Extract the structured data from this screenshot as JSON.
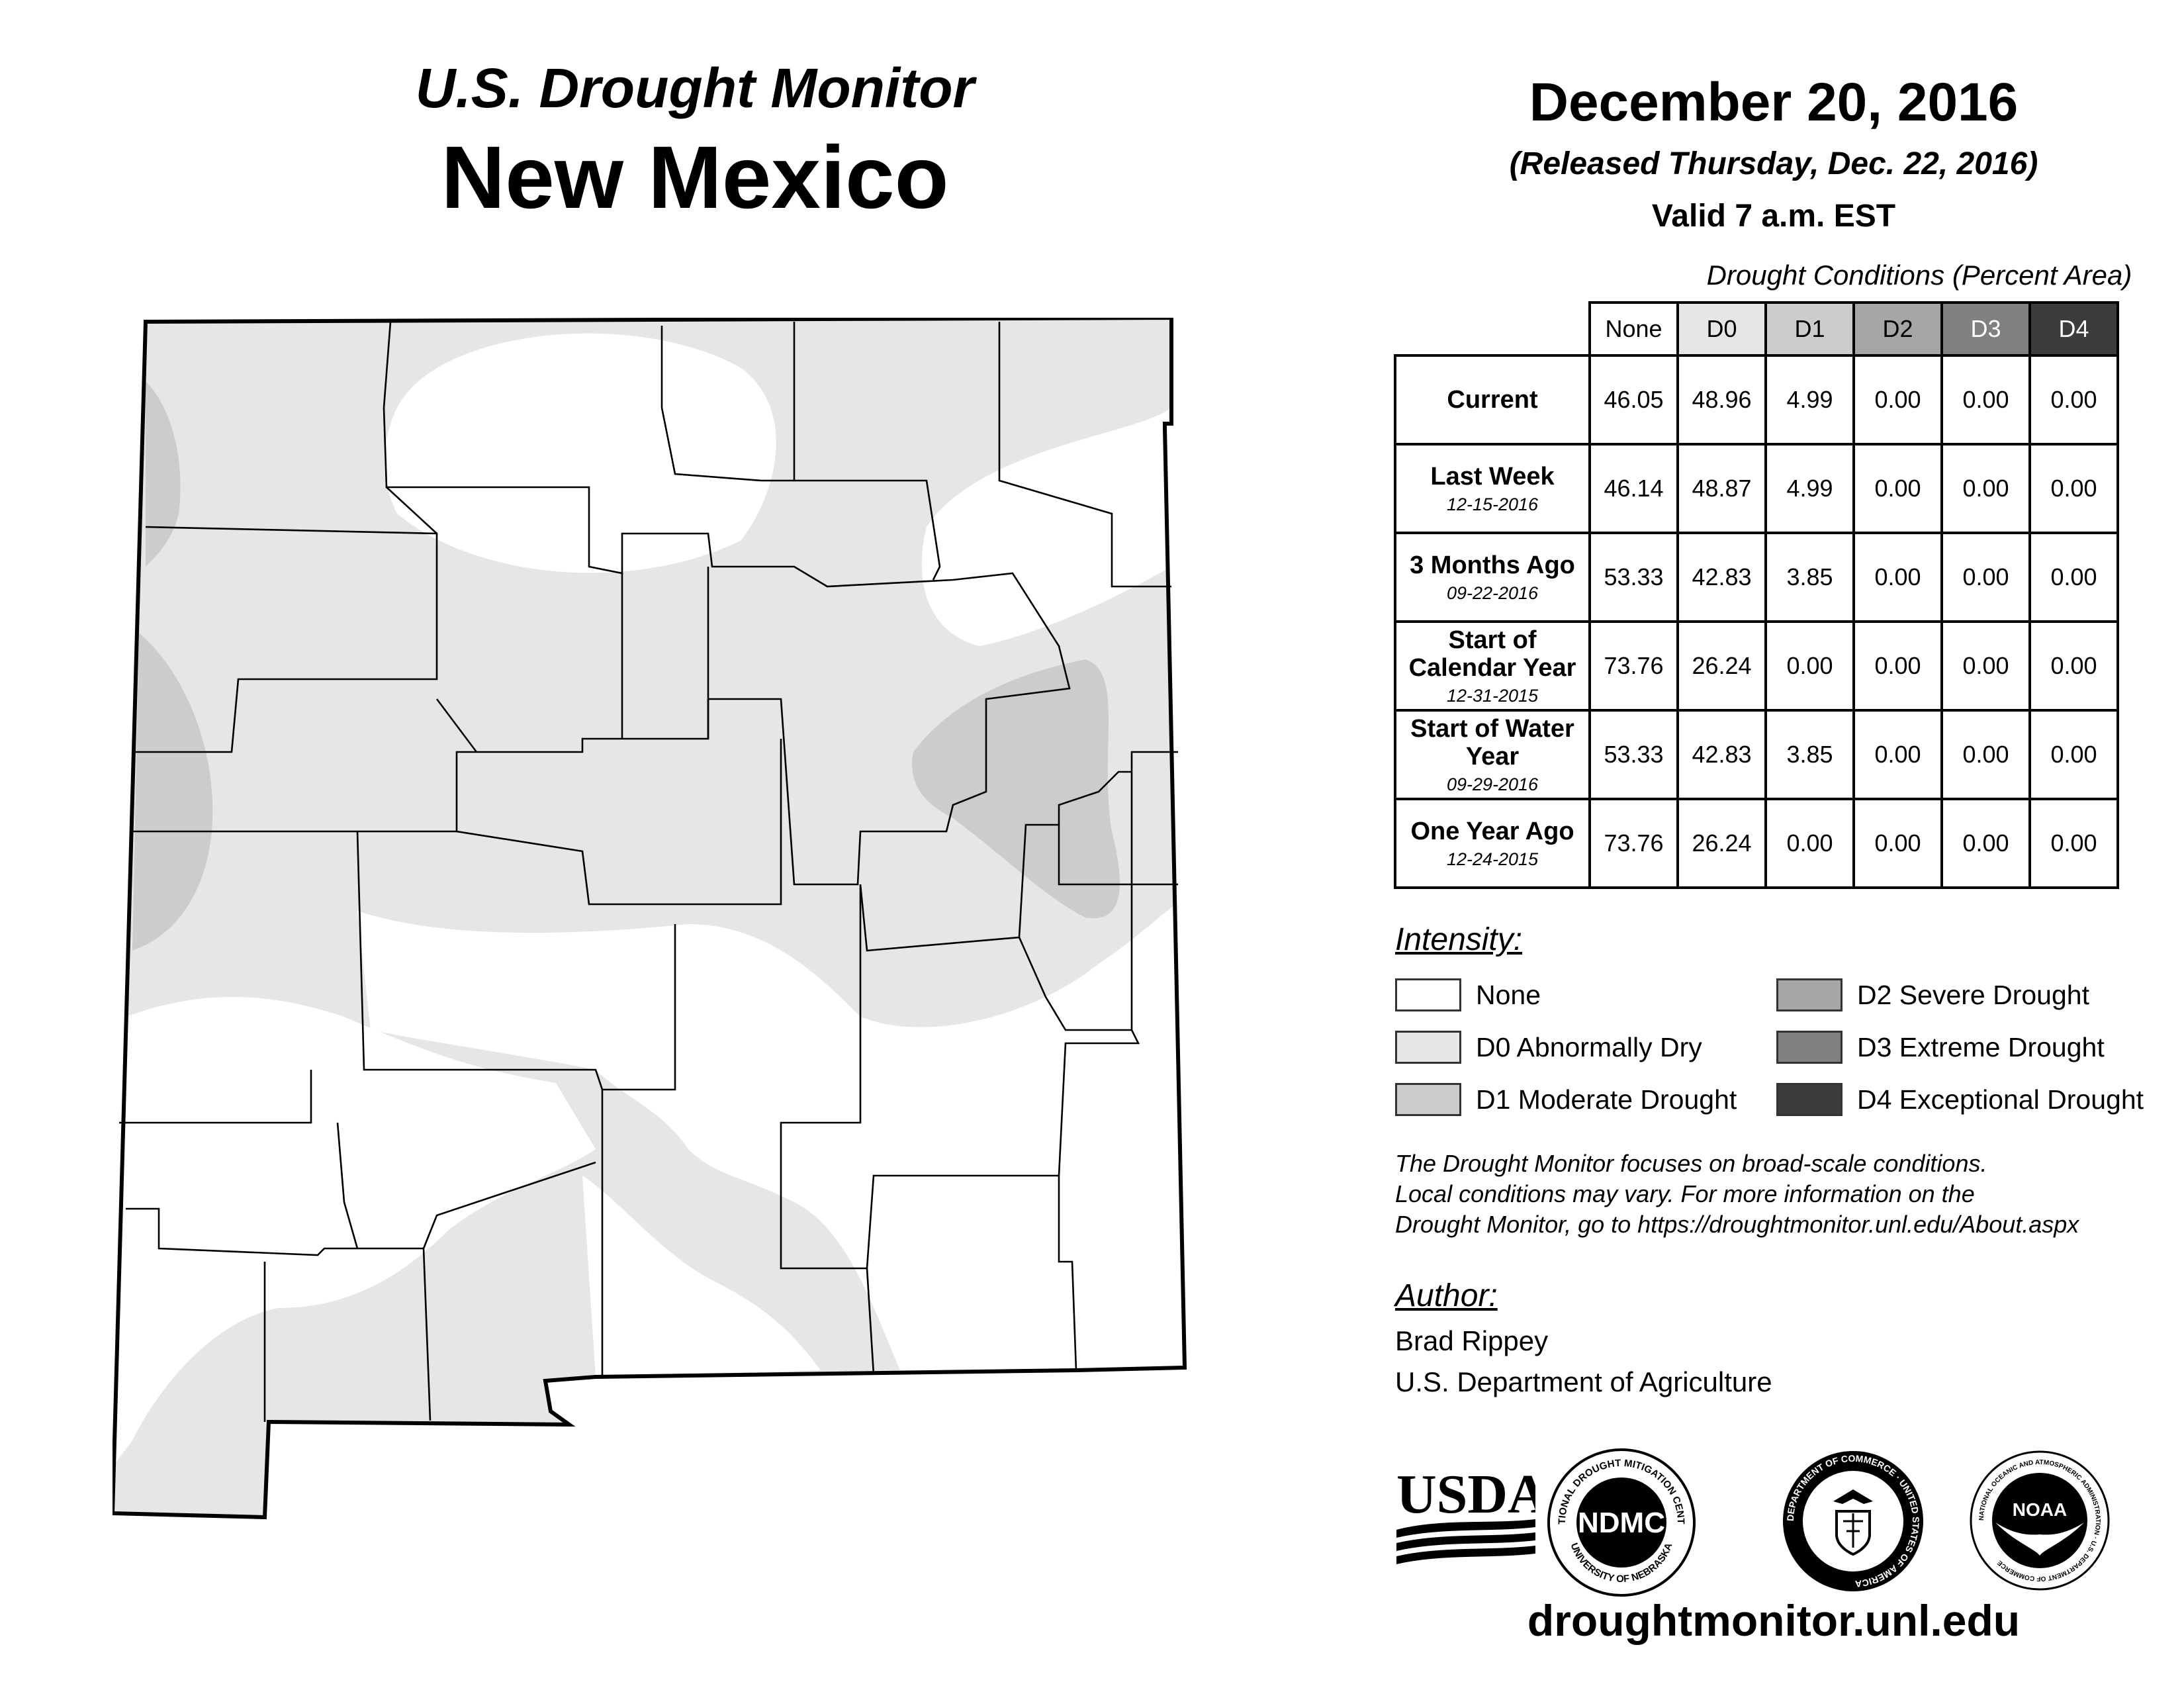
{
  "header": {
    "monitor_title": "U.S. Drought Monitor",
    "state": "New Mexico"
  },
  "dates": {
    "map_date": "December 20, 2016",
    "released": "(Released Thursday, Dec. 22, 2016)",
    "valid": "Valid 7 a.m. EST"
  },
  "table": {
    "caption": "Drought Conditions (Percent Area)",
    "columns": [
      {
        "label": "None",
        "color": "#ffffff"
      },
      {
        "label": "D0",
        "color": "#e6e6e6"
      },
      {
        "label": "D1",
        "color": "#cccccc"
      },
      {
        "label": "D2",
        "color": "#a6a6a6"
      },
      {
        "label": "D3",
        "color": "#808080"
      },
      {
        "label": "D4",
        "color": "#3c3c3c"
      }
    ],
    "rows": [
      {
        "label": "Current",
        "date": "",
        "values": [
          "46.05",
          "48.96",
          "4.99",
          "0.00",
          "0.00",
          "0.00"
        ]
      },
      {
        "label": "Last Week",
        "date": "12-15-2016",
        "values": [
          "46.14",
          "48.87",
          "4.99",
          "0.00",
          "0.00",
          "0.00"
        ]
      },
      {
        "label": "3 Months Ago",
        "date": "09-22-2016",
        "values": [
          "53.33",
          "42.83",
          "3.85",
          "0.00",
          "0.00",
          "0.00"
        ]
      },
      {
        "label": "Start of Calendar Year",
        "date": "12-31-2015",
        "values": [
          "73.76",
          "26.24",
          "0.00",
          "0.00",
          "0.00",
          "0.00"
        ]
      },
      {
        "label": "Start of Water Year",
        "date": "09-29-2016",
        "values": [
          "53.33",
          "42.83",
          "3.85",
          "0.00",
          "0.00",
          "0.00"
        ]
      },
      {
        "label": "One Year Ago",
        "date": "12-24-2015",
        "values": [
          "73.76",
          "26.24",
          "0.00",
          "0.00",
          "0.00",
          "0.00"
        ]
      }
    ]
  },
  "legend": {
    "title": "Intensity:",
    "items": [
      {
        "label": "None",
        "color": "#ffffff"
      },
      {
        "label": "D0 Abnormally Dry",
        "color": "#e6e6e6"
      },
      {
        "label": "D1 Moderate Drought",
        "color": "#cccccc"
      },
      {
        "label": "D2 Severe Drought",
        "color": "#a6a6a6"
      },
      {
        "label": "D3 Extreme Drought",
        "color": "#808080"
      },
      {
        "label": "D4 Exceptional Drought",
        "color": "#3c3c3c"
      }
    ]
  },
  "note": {
    "line1": "The Drought Monitor focuses on broad-scale conditions.",
    "line2": "Local conditions may vary. For more information on the",
    "line3": "Drought Monitor, go to https://droughtmonitor.unl.edu/About.aspx"
  },
  "author": {
    "title": "Author:",
    "name": "Brad Rippey",
    "org": "U.S. Department of Agriculture"
  },
  "logos": {
    "usda": "USDA",
    "ndmc": "NDMC",
    "ndmc_ring_top": "NATIONAL DROUGHT MITIGATION CENTER",
    "ndmc_ring_bottom": "UNIVERSITY OF NEBRASKA",
    "commerce_ring": "DEPARTMENT OF COMMERCE · UNITED STATES OF AMERICA",
    "noaa": "NOAA",
    "noaa_ring": "NATIONAL OCEANIC AND ATMOSPHERIC ADMINISTRATION · U.S. DEPARTMENT OF COMMERCE"
  },
  "footer": {
    "url": "droughtmonitor.unl.edu"
  }
}
